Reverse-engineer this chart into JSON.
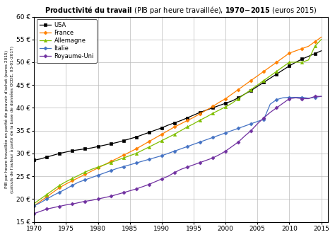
{
  "title": "Productivité du travail (PIB par heure travaillée), 1970-2015 (euros 2015)",
  "ylabel_line1": "PIB par heure travaillée en parité de pouvoir d'achat (euros 2015)",
  "ylabel_line2": "(calculs de l'auteur à partir de la base de données OCDE, 03-01-2017)",
  "xlim": [
    1970,
    2016
  ],
  "ylim": [
    15,
    60
  ],
  "yticks": [
    15,
    20,
    25,
    30,
    35,
    40,
    45,
    50,
    55,
    60
  ],
  "xticks": [
    1970,
    1975,
    1980,
    1985,
    1990,
    1995,
    2000,
    2005,
    2010,
    2015
  ],
  "series": {
    "USA": {
      "color": "#000000",
      "marker": "s",
      "markersize": 2.5,
      "values": [
        28.5,
        28.8,
        29.2,
        29.6,
        30.0,
        30.3,
        30.6,
        30.8,
        31.0,
        31.2,
        31.5,
        31.8,
        32.1,
        32.4,
        32.8,
        33.2,
        33.6,
        34.1,
        34.6,
        35.1,
        35.6,
        36.2,
        36.7,
        37.2,
        37.8,
        38.4,
        39.0,
        39.5,
        40.0,
        40.5,
        41.0,
        41.5,
        42.2,
        43.0,
        43.8,
        44.7,
        45.6,
        46.5,
        47.4,
        48.3,
        49.2,
        50.0,
        50.7,
        51.3,
        51.9,
        52.5
      ]
    },
    "France": {
      "color": "#FF8000",
      "marker": "D",
      "markersize": 2.5,
      "values": [
        18.5,
        19.5,
        20.5,
        21.5,
        22.5,
        23.3,
        24.0,
        24.7,
        25.4,
        26.1,
        26.8,
        27.5,
        28.2,
        28.9,
        29.6,
        30.3,
        31.0,
        31.8,
        32.6,
        33.4,
        34.2,
        35.0,
        35.8,
        36.5,
        37.2,
        37.9,
        38.7,
        39.5,
        40.3,
        41.2,
        42.0,
        43.0,
        44.0,
        45.0,
        46.0,
        47.0,
        48.0,
        49.0,
        50.0,
        51.0,
        52.0,
        52.5,
        53.0,
        53.5,
        54.5,
        55.5
      ]
    },
    "Allemagne": {
      "color": "#7FBF00",
      "marker": "^",
      "markersize": 3.0,
      "values": [
        19.0,
        20.0,
        21.0,
        22.0,
        23.0,
        23.8,
        24.5,
        25.2,
        25.9,
        26.5,
        27.0,
        27.5,
        28.0,
        28.5,
        29.0,
        29.5,
        30.0,
        30.7,
        31.4,
        32.1,
        32.8,
        33.5,
        34.2,
        35.0,
        35.8,
        36.5,
        37.3,
        38.0,
        38.8,
        39.5,
        40.2,
        41.0,
        42.0,
        43.0,
        44.0,
        45.0,
        46.0,
        47.0,
        48.0,
        49.0,
        50.0,
        50.0,
        50.0,
        50.5,
        53.5,
        55.0
      ]
    },
    "Italie": {
      "color": "#4472C4",
      "marker": "D",
      "markersize": 2.5,
      "values": [
        18.5,
        19.2,
        20.0,
        20.8,
        21.5,
        22.2,
        23.0,
        23.7,
        24.2,
        24.7,
        25.2,
        25.7,
        26.2,
        26.7,
        27.1,
        27.5,
        27.9,
        28.3,
        28.7,
        29.1,
        29.5,
        30.0,
        30.5,
        31.0,
        31.5,
        32.0,
        32.5,
        33.0,
        33.5,
        34.0,
        34.5,
        35.0,
        35.5,
        36.0,
        36.5,
        37.0,
        37.5,
        40.8,
        41.8,
        42.2,
        42.3,
        42.3,
        42.3,
        42.1,
        42.3,
        42.5
      ]
    },
    "Royaume-Uni": {
      "color": "#7030A0",
      "marker": "D",
      "markersize": 2.5,
      "values": [
        16.8,
        17.3,
        17.8,
        18.1,
        18.4,
        18.7,
        18.9,
        19.2,
        19.5,
        19.7,
        20.0,
        20.3,
        20.6,
        21.0,
        21.4,
        21.8,
        22.2,
        22.7,
        23.2,
        23.8,
        24.4,
        25.0,
        25.8,
        26.5,
        27.0,
        27.5,
        28.0,
        28.5,
        29.0,
        29.7,
        30.5,
        31.5,
        32.5,
        33.8,
        35.0,
        36.5,
        37.8,
        39.0,
        40.0,
        41.0,
        42.0,
        42.2,
        42.0,
        42.0,
        42.5,
        42.5
      ]
    }
  },
  "legend_order": [
    "USA",
    "France",
    "Allemagne",
    "Italie",
    "Royaume-Uni"
  ],
  "background_color": "#ffffff",
  "grid_color": "#bbbbbb"
}
